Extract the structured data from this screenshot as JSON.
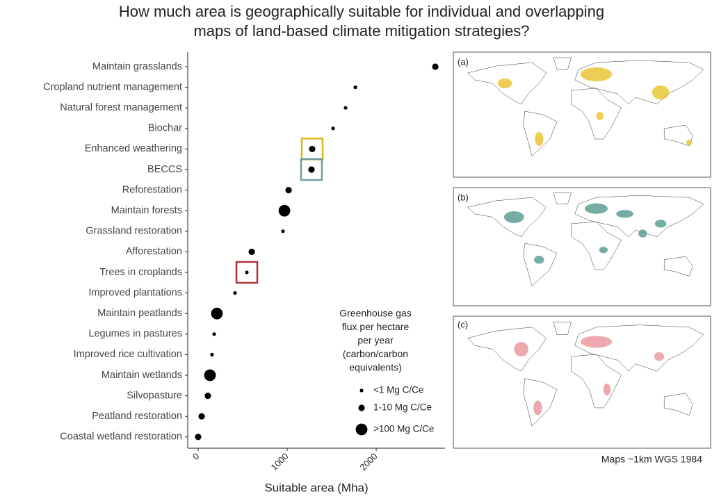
{
  "chart_data": {
    "type": "scatter",
    "title": [
      "How much area is geographically suitable for individual and overlapping",
      "maps of land-based climate mitigation strategies?"
    ],
    "categories": [
      "Maintain grasslands",
      "Cropland nutrient management",
      "Natural forest management",
      "Biochar",
      "Enhanced weathering",
      "BECCS",
      "Reforestation",
      "Maintain forests",
      "Grassland restoration",
      "Afforestation",
      "Trees in croplands",
      "Improved plantations",
      "Maintain peatlands",
      "Legumes in pastures",
      "Improved rice cultivation",
      "Maintain wetlands",
      "Silvopasture",
      "Peatland restoration",
      "Coastal wetland restoration"
    ],
    "series": [
      {
        "name": "<1 Mg C/Ce",
        "color": "#000000",
        "values": [
          null,
          1766,
          1656,
          1516,
          null,
          null,
          null,
          null,
          953,
          null,
          547,
          414,
          null,
          180,
          156,
          null,
          null,
          null,
          null
        ]
      },
      {
        "name": "1-10 Mg C/Ce",
        "color": "#000000",
        "values": [
          2664,
          null,
          null,
          null,
          1281,
          1273,
          1016,
          null,
          null,
          602,
          null,
          null,
          null,
          null,
          null,
          null,
          109,
          39,
          0
        ]
      },
      {
        "name": ">100 Mg C/Ce",
        "color": "#000000",
        "values": [
          null,
          null,
          null,
          null,
          null,
          null,
          null,
          969,
          null,
          null,
          null,
          null,
          211,
          null,
          null,
          133,
          null,
          null,
          null
        ]
      }
    ],
    "highlight_colors": [
      null,
      null,
      null,
      null,
      "#d9b81c",
      "#6f9ea0",
      null,
      null,
      null,
      null,
      "#b3333d",
      null,
      null,
      null,
      null,
      null,
      null,
      null,
      null
    ],
    "legend_title": [
      "Greenhouse gas",
      "flux per hectare",
      "per year",
      "(carbon/carbon",
      "equivalents)"
    ],
    "xlabel": "Suitable area (Mha)",
    "xlim": [
      -117,
      2773
    ],
    "xticks": [
      0,
      1000,
      2000
    ],
    "maps": {
      "panels": [
        "(a)",
        "(b)",
        "(c)"
      ],
      "caption": "Maps ~1km WGS 1984"
    }
  }
}
